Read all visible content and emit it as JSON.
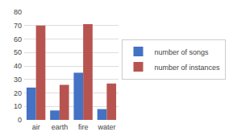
{
  "chart_data": {
    "type": "bar",
    "categories": [
      "air",
      "earth",
      "fire",
      "water"
    ],
    "series": [
      {
        "name": "number of songs",
        "color": "#4472C4",
        "values": [
          24,
          7,
          35,
          8
        ]
      },
      {
        "name": "number of instances",
        "color": "#B85450",
        "values": [
          70,
          26,
          71,
          27
        ]
      }
    ],
    "ylim": [
      0,
      80
    ],
    "yticks": [
      0,
      10,
      20,
      30,
      40,
      50,
      60,
      70,
      80
    ],
    "grid": true,
    "legend": "right"
  }
}
